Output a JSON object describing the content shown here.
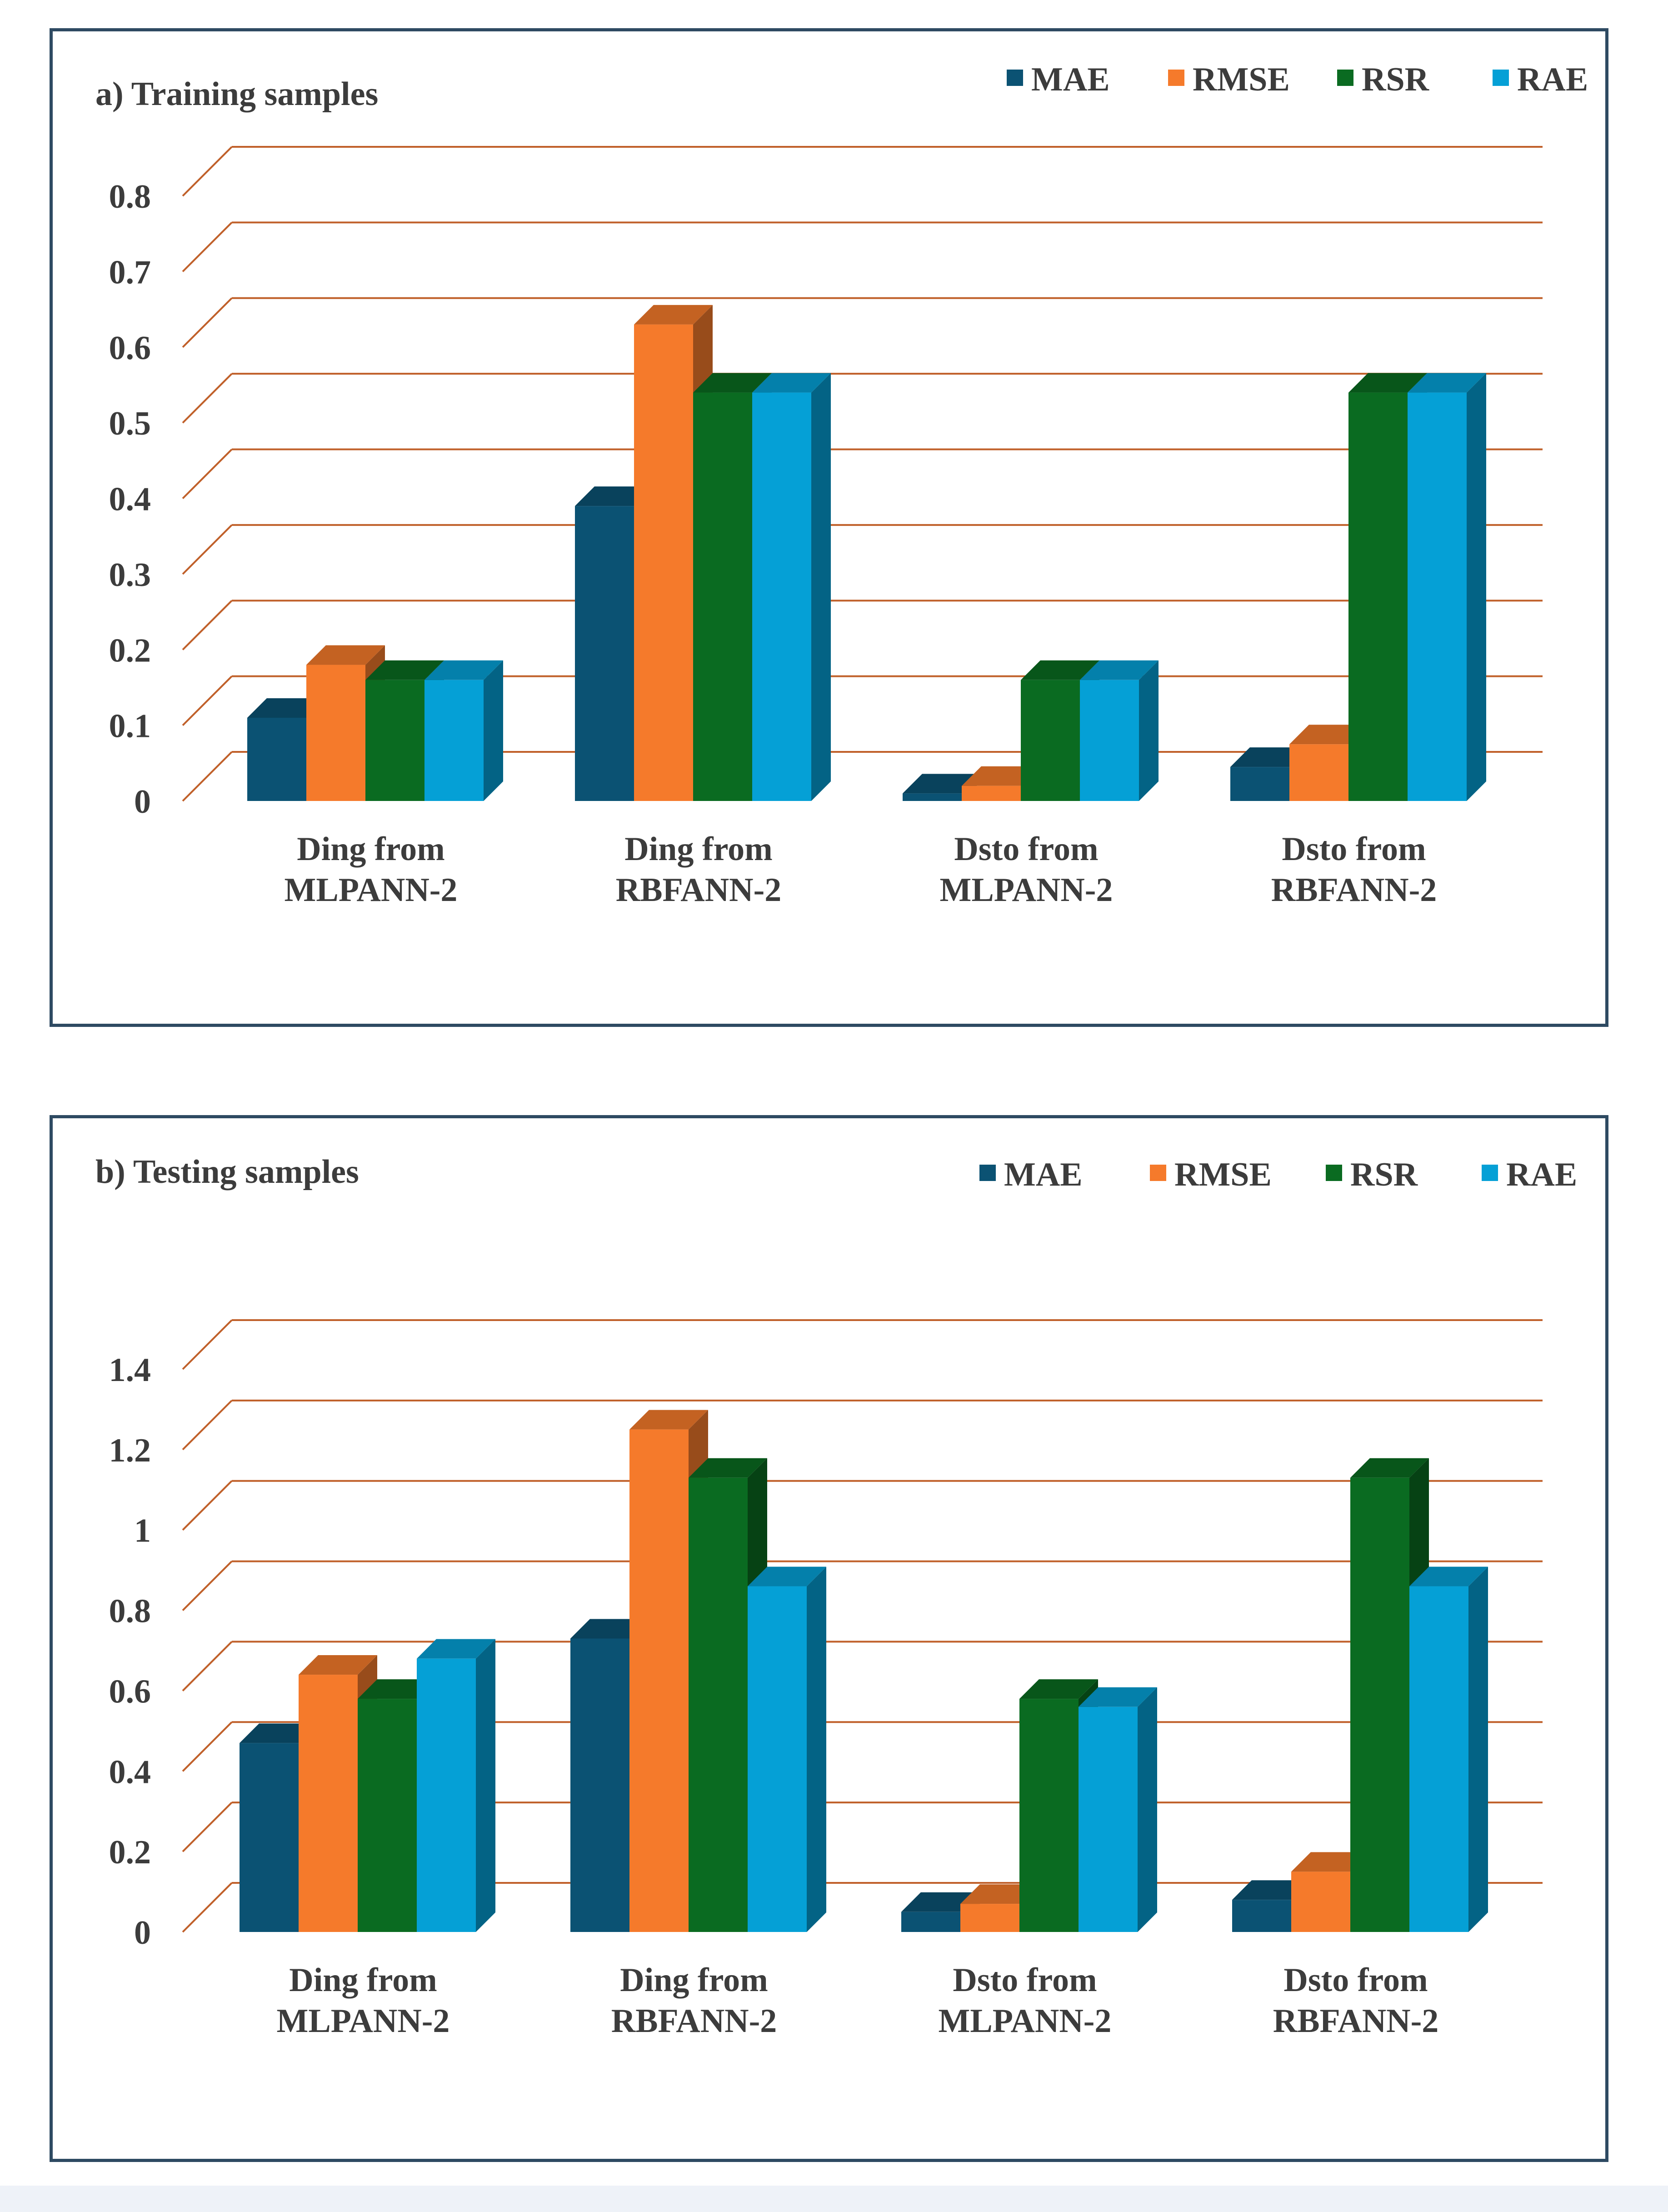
{
  "chart_data": [
    {
      "type": "bar",
      "title": "a) Training samples",
      "categories": [
        "Ding from|MLPANN-2",
        "Ding from|RBFANN-2",
        "Dsto from|MLPANN-2",
        "Dsto from|RBFANN-2"
      ],
      "series": [
        {
          "name": "MAE",
          "values": [
            0.11,
            0.39,
            0.01,
            0.045
          ]
        },
        {
          "name": "RMSE",
          "values": [
            0.18,
            0.63,
            0.02,
            0.075
          ]
        },
        {
          "name": "RSR",
          "values": [
            0.16,
            0.54,
            0.16,
            0.54
          ]
        },
        {
          "name": "RAE",
          "values": [
            0.16,
            0.54,
            0.16,
            0.54
          ]
        }
      ],
      "ylim": [
        0,
        0.8
      ],
      "yticks": [
        "0",
        "0.1",
        "0.2",
        "0.3",
        "0.4",
        "0.5",
        "0.6",
        "0.7",
        "0.8"
      ],
      "xlabel": "",
      "ylabel": "",
      "legend": "top-right",
      "grid": true
    },
    {
      "type": "bar",
      "title": "b) Testing samples",
      "categories": [
        "Ding from|MLPANN-2",
        "Ding from|RBFANN-2",
        "Dsto from|MLPANN-2",
        "Dsto from|RBFANN-2"
      ],
      "series": [
        {
          "name": "MAE",
          "values": [
            0.47,
            0.73,
            0.05,
            0.08
          ]
        },
        {
          "name": "RMSE",
          "values": [
            0.64,
            1.25,
            0.07,
            0.15
          ]
        },
        {
          "name": "RSR",
          "values": [
            0.58,
            1.13,
            0.58,
            1.13
          ]
        },
        {
          "name": "RAE",
          "values": [
            0.68,
            0.86,
            0.56,
            0.86
          ]
        }
      ],
      "ylim": [
        0,
        1.4
      ],
      "yticks": [
        "0",
        "0.2",
        "0.4",
        "0.6",
        "0.8",
        "1",
        "1.2",
        "1.4"
      ],
      "xlabel": "",
      "ylabel": "",
      "legend": "top-right",
      "grid": true
    }
  ],
  "colors": {
    "MAE": "#0b5273",
    "RMSE": "#f57a2b",
    "RSR": "#0a6b21",
    "RAE": "#05a0d6",
    "grid": "#c0602a",
    "frame": "#2e4a62",
    "text": "#3c3c3c"
  }
}
